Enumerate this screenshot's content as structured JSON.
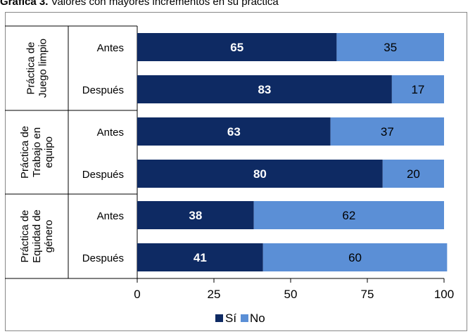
{
  "caption": {
    "label": "Gráfica 3.",
    "text": "Valores con mayores incrementos en su práctica"
  },
  "colors": {
    "si": "#0e2a63",
    "no": "#5b8fd6",
    "frame": "#888888",
    "grid": "#000000"
  },
  "chart_data": {
    "type": "bar",
    "orientation": "horizontal",
    "stacked": true,
    "title": "Valores con mayores incrementos en su práctica",
    "groups": [
      {
        "name": "Práctica de Juego limpio",
        "lines": [
          "Práctica de",
          "Juego limpio"
        ]
      },
      {
        "name": "Práctica de Trabajo en equipo",
        "lines": [
          "Práctica de",
          "Trabajo en",
          "equipo"
        ]
      },
      {
        "name": "Práctica de Equidad de género",
        "lines": [
          "Práctica de",
          "Equidad de",
          "género"
        ]
      }
    ],
    "categories": [
      "Antes",
      "Después",
      "Antes",
      "Después",
      "Antes",
      "Después"
    ],
    "series": [
      {
        "name": "Sí",
        "values": [
          65,
          83,
          63,
          80,
          38,
          41
        ]
      },
      {
        "name": "No",
        "values": [
          35,
          17,
          37,
          20,
          62,
          60
        ]
      }
    ],
    "xlim": [
      0,
      100
    ],
    "xticks": [
      0,
      25,
      50,
      75,
      100
    ],
    "legend": "bottom"
  }
}
